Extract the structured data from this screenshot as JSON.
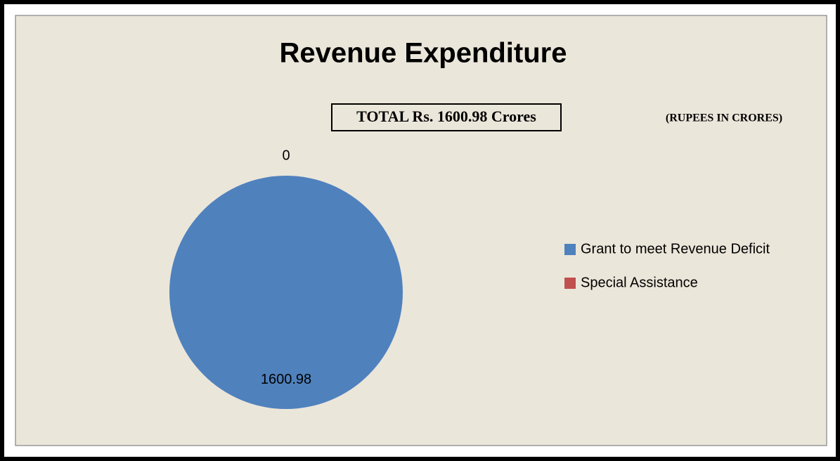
{
  "chart_data": {
    "type": "pie",
    "title": "Revenue Expenditure",
    "annotations": [
      "TOTAL Rs. 1600.98 Crores",
      "(RUPEES IN CRORES)"
    ],
    "categories": [
      "Grant to meet Revenue Deficit",
      "Special Assistance"
    ],
    "values": [
      1600.98,
      0
    ],
    "colors": [
      "#4f81bd",
      "#c0504d"
    ],
    "legend": "right"
  }
}
